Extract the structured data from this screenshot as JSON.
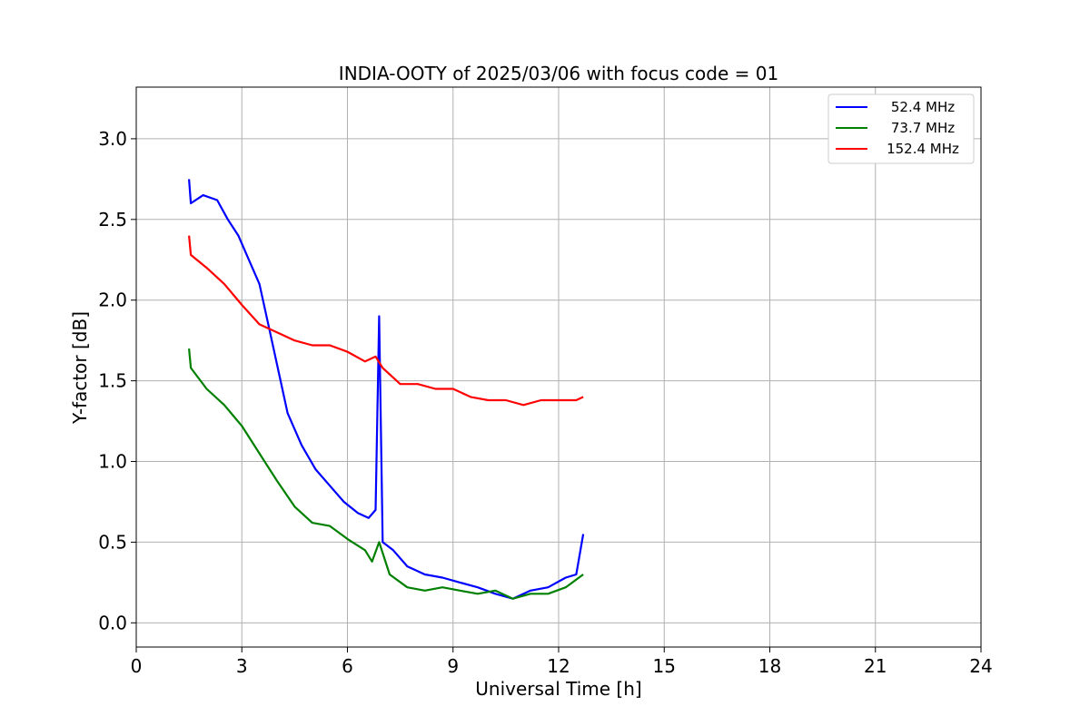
{
  "chart_data": {
    "type": "line",
    "title": "INDIA-OOTY of 2025/03/06 with focus code = 01",
    "xlabel": "Universal Time [h]",
    "ylabel": "Y-factor [dB]",
    "xlim": [
      0,
      24
    ],
    "ylim": [
      -0.15,
      3.32
    ],
    "xticks": [
      "0",
      "3",
      "6",
      "9",
      "12",
      "15",
      "18",
      "21",
      "24"
    ],
    "yticks": [
      "0.0",
      "0.5",
      "1.0",
      "1.5",
      "2.0",
      "2.5",
      "3.0"
    ],
    "grid": true,
    "legend_position": "top-right",
    "series": [
      {
        "name": "52.4 MHz",
        "color": "#0000ff",
        "x": [
          1.5,
          1.55,
          1.9,
          2.3,
          2.6,
          2.9,
          3.2,
          3.5,
          3.8,
          4.1,
          4.3,
          4.7,
          5.1,
          5.5,
          5.9,
          6.3,
          6.6,
          6.8,
          6.9,
          7.0,
          7.3,
          7.7,
          8.2,
          8.7,
          9.2,
          9.7,
          10.2,
          10.7,
          11.2,
          11.7,
          12.2,
          12.5,
          12.7
        ],
        "y": [
          2.75,
          2.6,
          2.65,
          2.62,
          2.5,
          2.4,
          2.25,
          2.1,
          1.8,
          1.5,
          1.3,
          1.1,
          0.95,
          0.85,
          0.75,
          0.68,
          0.65,
          0.7,
          1.9,
          0.5,
          0.45,
          0.35,
          0.3,
          0.28,
          0.25,
          0.22,
          0.18,
          0.15,
          0.2,
          0.22,
          0.28,
          0.3,
          0.55
        ]
      },
      {
        "name": "73.7 MHz",
        "color": "#008000",
        "x": [
          1.5,
          1.55,
          2.0,
          2.5,
          3.0,
          3.5,
          4.0,
          4.5,
          5.0,
          5.5,
          6.0,
          6.5,
          6.7,
          6.9,
          7.2,
          7.7,
          8.2,
          8.7,
          9.2,
          9.7,
          10.2,
          10.7,
          11.2,
          11.7,
          12.2,
          12.7
        ],
        "y": [
          1.7,
          1.58,
          1.45,
          1.35,
          1.22,
          1.05,
          0.88,
          0.72,
          0.62,
          0.6,
          0.52,
          0.45,
          0.38,
          0.5,
          0.3,
          0.22,
          0.2,
          0.22,
          0.2,
          0.18,
          0.2,
          0.15,
          0.18,
          0.18,
          0.22,
          0.3
        ]
      },
      {
        "name": "152.4 MHz",
        "color": "#ff0000",
        "x": [
          1.5,
          1.55,
          2.0,
          2.5,
          3.0,
          3.5,
          4.0,
          4.5,
          5.0,
          5.5,
          6.0,
          6.5,
          6.8,
          7.0,
          7.5,
          8.0,
          8.5,
          9.0,
          9.5,
          10.0,
          10.5,
          11.0,
          11.5,
          12.0,
          12.5,
          12.7
        ],
        "y": [
          2.4,
          2.28,
          2.2,
          2.1,
          1.97,
          1.85,
          1.8,
          1.75,
          1.72,
          1.72,
          1.68,
          1.62,
          1.65,
          1.58,
          1.48,
          1.48,
          1.45,
          1.45,
          1.4,
          1.38,
          1.38,
          1.35,
          1.38,
          1.38,
          1.38,
          1.4
        ]
      }
    ]
  }
}
